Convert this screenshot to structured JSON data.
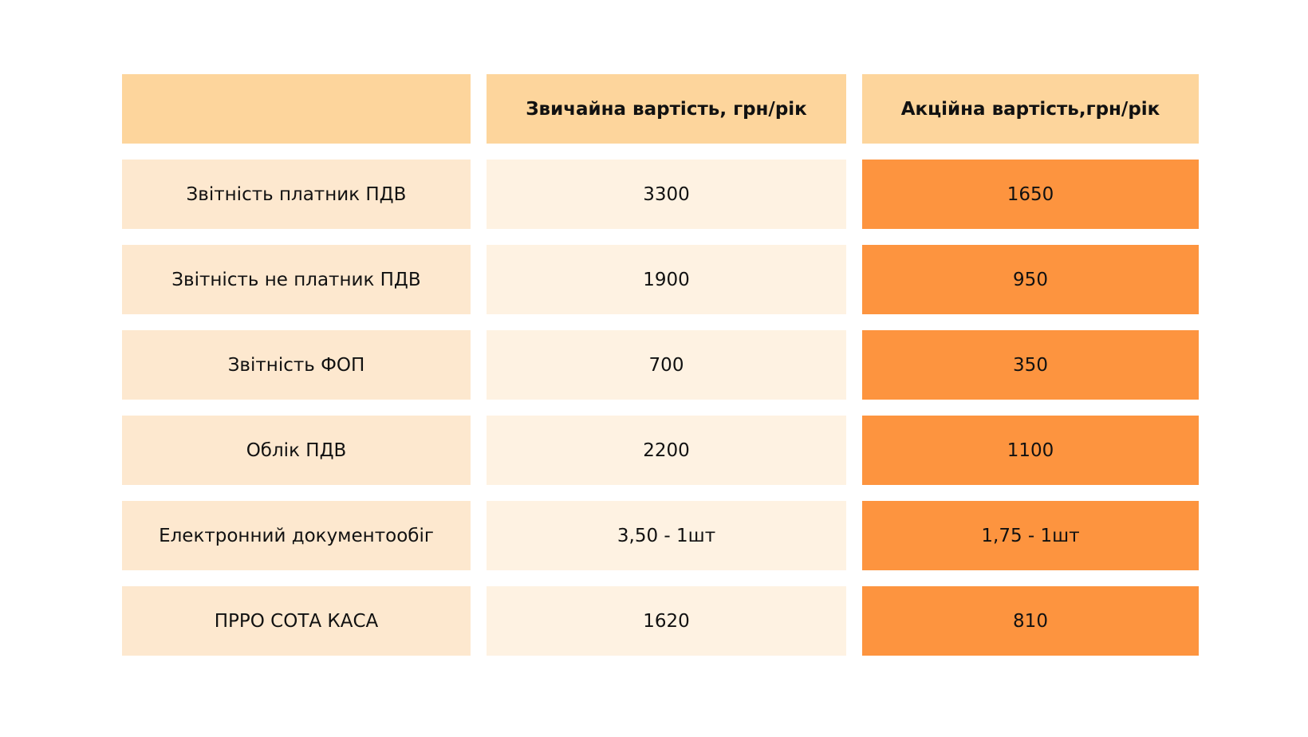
{
  "colors": {
    "header_bg": "#fdd59c",
    "label_bg": "#fde8cf",
    "regular_bg": "#fef2e2",
    "promo_bg": "#fd943f"
  },
  "table": {
    "headers": [
      "",
      "Звичайна вартість, грн/рік",
      "Акційна вартість,грн/рік"
    ],
    "rows": [
      {
        "service": "Звітність платник ПДВ",
        "regular": "3300",
        "promo": "1650"
      },
      {
        "service": "Звітність не платник ПДВ",
        "regular": "1900",
        "promo": "950"
      },
      {
        "service": "Звітність ФОП",
        "regular": "700",
        "promo": "350"
      },
      {
        "service": "Облік ПДВ",
        "regular": "2200",
        "promo": "1100"
      },
      {
        "service": "Електронний документообіг",
        "regular": "3,50 - 1шт",
        "promo": "1,75 - 1шт"
      },
      {
        "service": "ПРРО СОТА КАСА",
        "regular": "1620",
        "promo": "810"
      }
    ]
  }
}
